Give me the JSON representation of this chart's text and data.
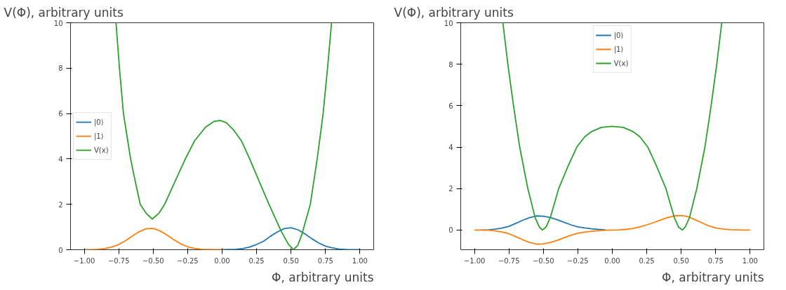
{
  "chart_data": [
    {
      "type": "line",
      "xlabel": "Φ, arbitrary units",
      "ylabel": "V(Φ), arbitrary units",
      "xlim": [
        -1.1,
        1.1
      ],
      "ylim": [
        0,
        10
      ],
      "xticks": [
        {
          "value": -1,
          "label": "−1.00"
        },
        {
          "value": -0.75,
          "label": "−0.75"
        },
        {
          "value": -0.5,
          "label": "−0.50"
        },
        {
          "value": -0.25,
          "label": "−0.25"
        },
        {
          "value": 0,
          "label": "0.00"
        },
        {
          "value": 0.25,
          "label": "0.25"
        },
        {
          "value": 0.5,
          "label": "0.50"
        },
        {
          "value": 0.75,
          "label": "0.75"
        },
        {
          "value": 1,
          "label": "1.00"
        }
      ],
      "yticks": [
        0,
        2,
        4,
        6,
        8,
        10
      ],
      "grid": false,
      "legend": "left",
      "marker": "none",
      "line_style": "solid",
      "series": [
        {
          "name": "|0⟩",
          "color": "#1f77b4",
          "x": [
            0,
            0.05,
            0.1,
            0.15,
            0.2,
            0.25,
            0.3,
            0.35,
            0.4,
            0.45,
            0.5,
            0.55,
            0.6,
            0.65,
            0.7,
            0.75,
            0.8,
            0.85,
            0.9,
            0.95,
            1
          ],
          "values": [
            0,
            0.01,
            0.02,
            0.05,
            0.12,
            0.23,
            0.37,
            0.59,
            0.78,
            0.93,
            0.97,
            0.88,
            0.7,
            0.49,
            0.3,
            0.16,
            0.08,
            0.03,
            0.01,
            0,
            0
          ]
        },
        {
          "name": "|1⟩",
          "color": "#ff7f0e",
          "x": [
            -1,
            -0.95,
            -0.9,
            -0.85,
            -0.8,
            -0.75,
            -0.7,
            -0.65,
            -0.6,
            -0.55,
            -0.5,
            -0.45,
            -0.4,
            -0.35,
            -0.3,
            -0.25,
            -0.2,
            -0.15,
            -0.1,
            -0.05,
            0
          ],
          "values": [
            0,
            0,
            0.02,
            0.05,
            0.12,
            0.23,
            0.4,
            0.61,
            0.8,
            0.93,
            0.94,
            0.83,
            0.65,
            0.44,
            0.26,
            0.13,
            0.06,
            0.02,
            0.01,
            0,
            0
          ]
        },
        {
          "name": "V(x)",
          "color": "#2ca02c",
          "x": [
            -0.77,
            -0.745,
            -0.716,
            -0.69,
            -0.664,
            -0.63,
            -0.594,
            -0.55,
            -0.507,
            -0.46,
            -0.417,
            -0.35,
            -0.267,
            -0.2,
            -0.12,
            -0.06,
            -0.015,
            0.03,
            0.08,
            0.14,
            0.2,
            0.27,
            0.34,
            0.43,
            0.48,
            0.518,
            0.55,
            0.58,
            0.64,
            0.69,
            0.733,
            0.765,
            0.794
          ],
          "values": [
            10,
            8,
            6,
            5,
            4,
            3,
            2,
            1.6,
            1.35,
            1.6,
            2,
            2.9,
            4,
            4.8,
            5.4,
            5.65,
            5.7,
            5.6,
            5.3,
            4.8,
            4,
            3,
            2,
            0.8,
            0.25,
            0,
            0.2,
            0.7,
            2,
            4,
            6,
            8,
            10
          ]
        }
      ]
    },
    {
      "type": "line",
      "xlabel": "Φ, arbitrary units",
      "ylabel": "V(Φ), arbitrary units",
      "xlim": [
        -1.1,
        1.1
      ],
      "ylim": [
        -0.95,
        10
      ],
      "xticks": [
        {
          "value": -1,
          "label": "−1.00"
        },
        {
          "value": -0.75,
          "label": "−0.75"
        },
        {
          "value": -0.5,
          "label": "−0.50"
        },
        {
          "value": -0.25,
          "label": "−0.25"
        },
        {
          "value": 0,
          "label": "0.00"
        },
        {
          "value": 0.25,
          "label": "0.25"
        },
        {
          "value": 0.5,
          "label": "0.50"
        },
        {
          "value": 0.75,
          "label": "0.75"
        },
        {
          "value": 1,
          "label": "1.00"
        }
      ],
      "yticks": [
        0,
        2,
        4,
        6,
        8,
        10
      ],
      "grid": false,
      "legend": "top",
      "marker": "none",
      "line_style": "solid",
      "series": [
        {
          "name": "|0⟩",
          "color": "#1f77b4",
          "x": [
            -0.95,
            -0.9,
            -0.85,
            -0.8,
            -0.75,
            -0.7,
            -0.65,
            -0.6,
            -0.55,
            -0.5,
            -0.45,
            -0.4,
            -0.35,
            -0.3,
            -0.25,
            -0.2,
            -0.15,
            -0.1,
            -0.05
          ],
          "values": [
            0,
            0.01,
            0.04,
            0.09,
            0.18,
            0.32,
            0.47,
            0.6,
            0.68,
            0.67,
            0.6,
            0.5,
            0.37,
            0.25,
            0.15,
            0.1,
            0.06,
            0.03,
            0.01
          ]
        },
        {
          "name": "|1⟩",
          "color": "#ff7f0e",
          "x": [
            -1,
            -0.95,
            -0.9,
            -0.85,
            -0.8,
            -0.75,
            -0.7,
            -0.65,
            -0.6,
            -0.55,
            -0.5,
            -0.45,
            -0.4,
            -0.35,
            -0.3,
            -0.25,
            -0.2,
            -0.15,
            -0.1,
            -0.05,
            0,
            0.05,
            0.1,
            0.15,
            0.2,
            0.25,
            0.3,
            0.35,
            0.4,
            0.45,
            0.5,
            0.55,
            0.6,
            0.65,
            0.7,
            0.75,
            0.8,
            0.85,
            0.9,
            0.95,
            1
          ],
          "values": [
            0,
            0,
            -0.01,
            -0.04,
            -0.09,
            -0.18,
            -0.32,
            -0.47,
            -0.6,
            -0.68,
            -0.67,
            -0.6,
            -0.5,
            -0.37,
            -0.25,
            -0.15,
            -0.1,
            -0.06,
            -0.03,
            -0.01,
            0,
            0.01,
            0.03,
            0.08,
            0.15,
            0.25,
            0.36,
            0.48,
            0.6,
            0.68,
            0.7,
            0.64,
            0.5,
            0.35,
            0.2,
            0.1,
            0.05,
            0.02,
            0.01,
            0,
            0
          ]
        },
        {
          "name": "V(x)",
          "color": "#2ca02c",
          "x": [
            -0.794,
            -0.758,
            -0.717,
            -0.672,
            -0.613,
            -0.56,
            -0.53,
            -0.508,
            -0.48,
            -0.45,
            -0.389,
            -0.32,
            -0.258,
            -0.2,
            -0.15,
            -0.08,
            0,
            0.08,
            0.15,
            0.2,
            0.258,
            0.32,
            0.389,
            0.45,
            0.48,
            0.508,
            0.53,
            0.56,
            0.613,
            0.672,
            0.717,
            0.758,
            0.794
          ],
          "values": [
            10,
            8,
            6,
            4,
            2,
            0.6,
            0.15,
            0,
            0.15,
            0.6,
            2,
            3.1,
            4,
            4.5,
            4.75,
            4.95,
            5,
            4.95,
            4.75,
            4.5,
            4,
            3.1,
            2,
            0.6,
            0.15,
            0,
            0.15,
            0.6,
            2,
            4,
            6,
            8,
            10
          ]
        }
      ]
    }
  ]
}
